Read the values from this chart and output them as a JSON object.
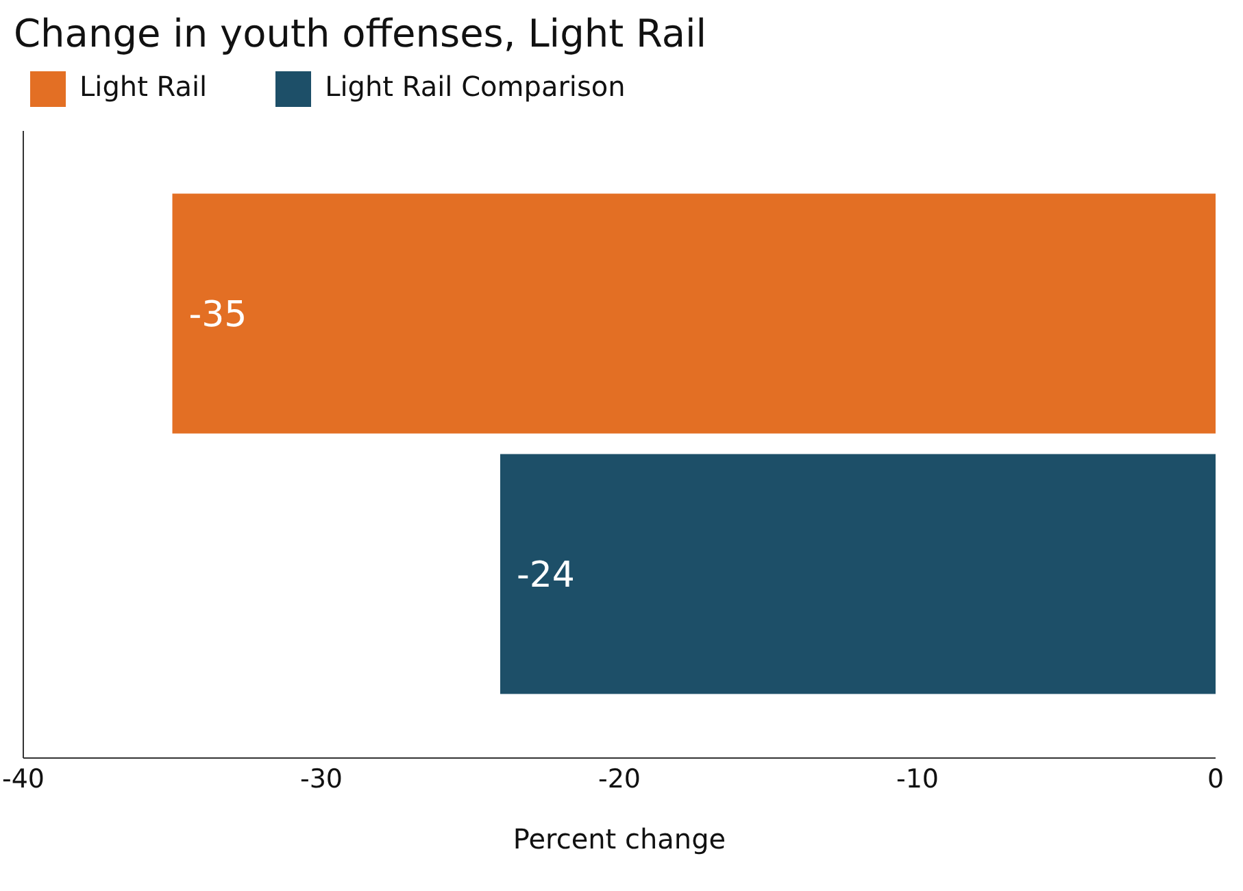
{
  "chart_data": {
    "type": "bar",
    "title": "Change in youth offenses, Light Rail",
    "xlabel": "Percent change",
    "orientation": "horizontal",
    "categories": [
      null
    ],
    "series": [
      {
        "name": "Light Rail",
        "color": "#e36f24",
        "values": [
          -35
        ]
      },
      {
        "name": "Light Rail Comparison",
        "color": "#1d4f68",
        "values": [
          -24
        ]
      }
    ],
    "xlim": [
      -40,
      0
    ],
    "xticks": [
      -40,
      -30,
      -20,
      -10,
      0
    ],
    "data_labels": true,
    "legend": "top left",
    "grid": false
  }
}
